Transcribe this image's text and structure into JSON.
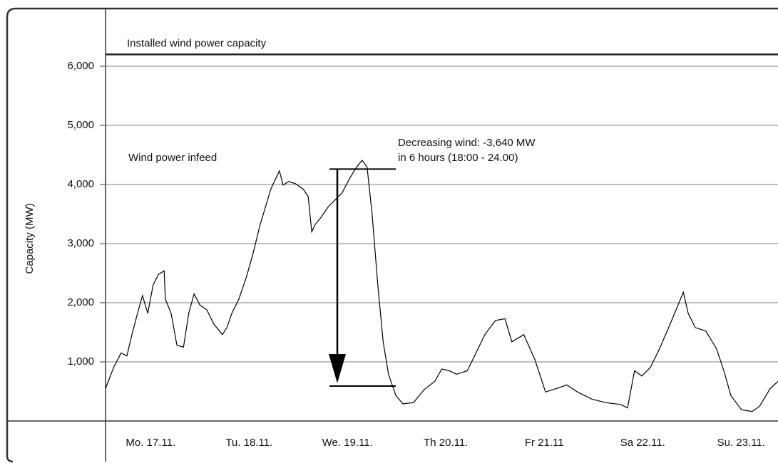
{
  "chart_data": {
    "type": "line",
    "y_label": "Capacity (MW)",
    "xlim": [
      0,
      164
    ],
    "xticks": [
      {
        "value": 11,
        "label": "Mo. 17.11."
      },
      {
        "value": 35,
        "label": "Tu. 18.11."
      },
      {
        "value": 59,
        "label": "We. 19.11."
      },
      {
        "value": 83,
        "label": "Th 20.11."
      },
      {
        "value": 107,
        "label": "Fr 21.11"
      },
      {
        "value": 131,
        "label": "Sa 22.11."
      },
      {
        "value": 155,
        "label": "Su. 23.11."
      }
    ],
    "ylim": [
      0,
      7000
    ],
    "yticks": [
      {
        "value": 1000,
        "label": "1,000"
      },
      {
        "value": 2000,
        "label": "2,000"
      },
      {
        "value": 3000,
        "label": "3,000"
      },
      {
        "value": 4000,
        "label": "4,000"
      },
      {
        "value": 5000,
        "label": "5,000"
      },
      {
        "value": 6000,
        "label": "6,000"
      }
    ],
    "grid": true,
    "capacity_line": {
      "label": "Installed wind power capacity",
      "value": 6200
    },
    "series": [
      {
        "name": "Wind power infeed",
        "color": "#000000",
        "x": [
          0,
          2,
          3.8,
          5.2,
          6.4,
          7.8,
          9,
          10.3,
          11.6,
          12.9,
          14.3,
          14.6,
          16,
          17.4,
          19,
          20.3,
          21.6,
          23,
          24.7,
          26.4,
          28.5,
          29.6,
          30.8,
          32.5,
          34.3,
          36,
          37.7,
          39,
          40.3,
          42.4,
          43.3,
          44.7,
          46.4,
          48.2,
          49.4,
          50.3,
          51.1,
          52.5,
          54.3,
          56,
          57.7,
          59.5,
          61.2,
          62.6,
          63.8,
          65,
          66.4,
          67.7,
          69,
          70.8,
          72.5,
          75.1,
          77.7,
          80.3,
          82,
          83.8,
          85.6,
          88.2,
          90,
          92.5,
          95.1,
          97.4,
          99.1,
          102,
          104.7,
          107.3,
          110,
          112.5,
          115.1,
          118.6,
          122,
          125.6,
          127.3,
          129,
          130.8,
          132.9,
          135.1,
          137.7,
          139.5,
          140.9,
          142.1,
          143.8,
          146.4,
          149,
          150.8,
          152.5,
          155.1,
          157.7,
          159.5,
          162.1,
          164
        ],
        "values": [
          550,
          910,
          1150,
          1100,
          1450,
          1820,
          2120,
          1820,
          2300,
          2480,
          2540,
          2060,
          1820,
          1280,
          1250,
          1820,
          2150,
          1960,
          1880,
          1640,
          1460,
          1580,
          1820,
          2060,
          2420,
          2840,
          3320,
          3620,
          3920,
          4230,
          3990,
          4050,
          4010,
          3920,
          3800,
          3200,
          3320,
          3440,
          3620,
          3740,
          3860,
          4100,
          4290,
          4410,
          4290,
          3500,
          2300,
          1340,
          790,
          430,
          290,
          310,
          530,
          670,
          880,
          850,
          790,
          850,
          1100,
          1460,
          1700,
          1730,
          1340,
          1460,
          1040,
          490,
          550,
          610,
          490,
          370,
          310,
          280,
          220,
          850,
          760,
          910,
          1220,
          1640,
          1940,
          2180,
          1820,
          1580,
          1520,
          1220,
          850,
          430,
          190,
          160,
          250,
          550,
          670
        ]
      }
    ],
    "annotation": {
      "text_1": "Decreasing wind: -3,640 MW",
      "text_2": "in 6 hours (18:00 - 24.00)",
      "from": 4260,
      "to": 590
    }
  }
}
